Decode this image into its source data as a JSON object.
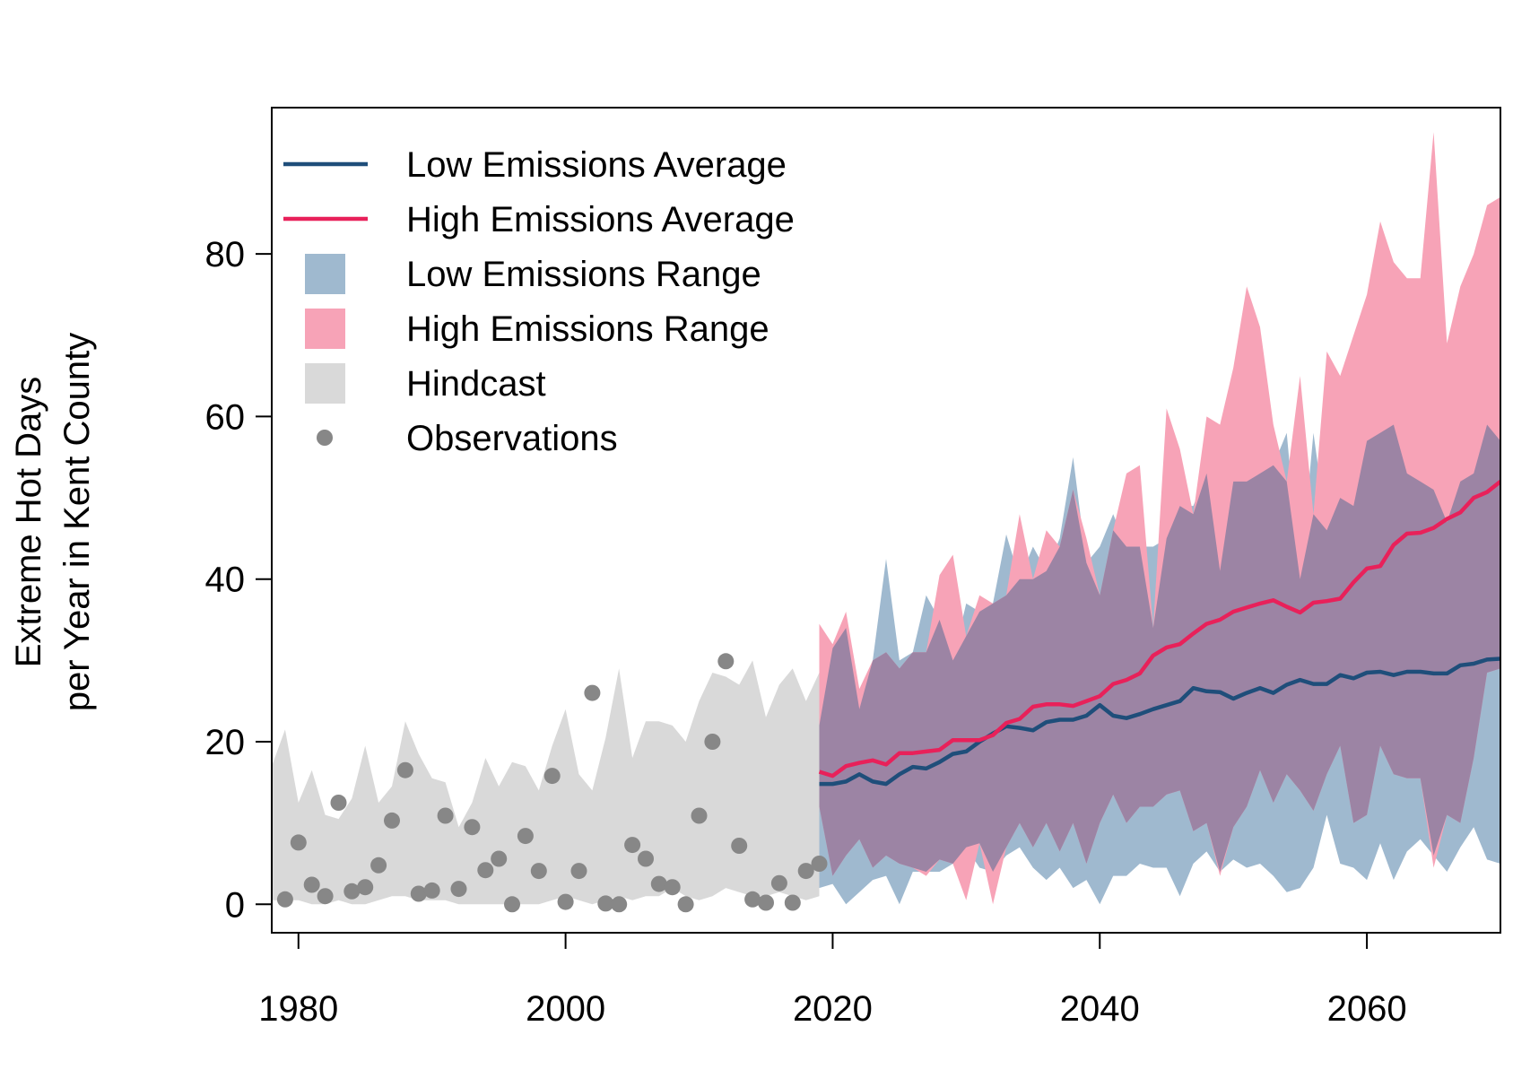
{
  "chart_data": {
    "type": "area",
    "title": "",
    "xlabel": "",
    "ylabel_line1": "Extreme Hot Days",
    "ylabel_line2": "per Year in Kent County",
    "xlim": [
      1978,
      2070
    ],
    "ylim": [
      -3.5,
      98
    ],
    "x_ticks": [
      1980,
      2000,
      2020,
      2040,
      2060
    ],
    "y_ticks": [
      0,
      20,
      40,
      60,
      80
    ],
    "grid": false,
    "legend_placement": "top-left",
    "colors": {
      "low_avg": "#1f4e7a",
      "high_avg": "#e8215a",
      "low_range": "#9fb9cf",
      "high_range": "#f7a3b7",
      "overlap": "#9c84a4",
      "hindcast": "#d9d9d9",
      "observations": "#878787"
    },
    "legend": [
      {
        "label": "Low Emissions Average",
        "kind": "line",
        "color": "#1f4e7a"
      },
      {
        "label": "High Emissions Average",
        "kind": "line",
        "color": "#e8215a"
      },
      {
        "label": "Low Emissions Range",
        "kind": "box",
        "color": "#9fb9cf"
      },
      {
        "label": "High Emissions Range",
        "kind": "box",
        "color": "#f7a3b7"
      },
      {
        "label": "Hindcast",
        "kind": "box",
        "color": "#d9d9d9"
      },
      {
        "label": "Observations",
        "kind": "point",
        "color": "#878787"
      }
    ],
    "series": [
      {
        "name": "Hindcast",
        "x": [
          1978,
          1979,
          1980,
          1981,
          1982,
          1983,
          1984,
          1985,
          1986,
          1987,
          1988,
          1989,
          1990,
          1991,
          1992,
          1993,
          1994,
          1995,
          1996,
          1997,
          1998,
          1999,
          2000,
          2001,
          2002,
          2003,
          2004,
          2005,
          2006,
          2007,
          2008,
          2009,
          2010,
          2011,
          2012,
          2013,
          2014,
          2015,
          2016,
          2017,
          2018,
          2019
        ],
        "upper": [
          17,
          21.5,
          12.5,
          16.5,
          11,
          10.5,
          13,
          19.5,
          12.5,
          14.5,
          22.5,
          18.5,
          15.5,
          15,
          9.5,
          12.5,
          18,
          14.5,
          17.5,
          17,
          14,
          19.5,
          24,
          16,
          14,
          20.5,
          29,
          18,
          22.5,
          22.5,
          22,
          20,
          25,
          28.5,
          28,
          27,
          30,
          23,
          27,
          29,
          25,
          28.5
        ],
        "lower": [
          0.5,
          0.5,
          0.5,
          0,
          0,
          0.5,
          0,
          0,
          0.5,
          1,
          1,
          0.5,
          0.5,
          0.5,
          0,
          0,
          0,
          0,
          0,
          0,
          0,
          0.5,
          1,
          0.5,
          0,
          0.5,
          1,
          0.5,
          1,
          1,
          2,
          1,
          0.5,
          1,
          2,
          1.5,
          1,
          1,
          1.5,
          1,
          0.5,
          1
        ]
      },
      {
        "name": "Low Emissions Range",
        "x": [
          2019,
          2020,
          2021,
          2022,
          2023,
          2024,
          2025,
          2026,
          2027,
          2028,
          2029,
          2030,
          2031,
          2032,
          2033,
          2034,
          2035,
          2036,
          2037,
          2038,
          2039,
          2040,
          2041,
          2042,
          2043,
          2044,
          2045,
          2046,
          2047,
          2048,
          2049,
          2050,
          2051,
          2052,
          2053,
          2054,
          2055,
          2056,
          2057,
          2058,
          2059,
          2060,
          2061,
          2062,
          2063,
          2064,
          2065,
          2066,
          2067,
          2068,
          2069,
          2070
        ],
        "upper": [
          22,
          31.5,
          34,
          24,
          30,
          42.5,
          30,
          31,
          38,
          35,
          30,
          37,
          36,
          37,
          45.5,
          40,
          44,
          41,
          45,
          55,
          42,
          44,
          48,
          44,
          44,
          44,
          45,
          49,
          49,
          53,
          41,
          52,
          52,
          53,
          54,
          58,
          40,
          58,
          46,
          50,
          49,
          57,
          58,
          59,
          53,
          52,
          51,
          47,
          52,
          53,
          59,
          57
        ],
        "lower": [
          2,
          2.5,
          0,
          1.5,
          3,
          3.5,
          0,
          4,
          4,
          4,
          5,
          7,
          4.5,
          4,
          6,
          7,
          4.5,
          3,
          4.5,
          2,
          3,
          0,
          3.5,
          3.5,
          5,
          4.5,
          4.5,
          1,
          5,
          6.5,
          4,
          5.5,
          4.5,
          5,
          3.5,
          1.5,
          2,
          4.5,
          11,
          5,
          4.5,
          3,
          7.5,
          3,
          6.5,
          8,
          6,
          4,
          7,
          9.5,
          5.5,
          5
        ]
      },
      {
        "name": "High Emissions Range",
        "x": [
          2019,
          2020,
          2021,
          2022,
          2023,
          2024,
          2025,
          2026,
          2027,
          2028,
          2029,
          2030,
          2031,
          2032,
          2033,
          2034,
          2035,
          2036,
          2037,
          2038,
          2039,
          2040,
          2041,
          2042,
          2043,
          2044,
          2045,
          2046,
          2047,
          2048,
          2049,
          2050,
          2051,
          2052,
          2053,
          2054,
          2055,
          2056,
          2057,
          2058,
          2059,
          2060,
          2061,
          2062,
          2063,
          2064,
          2065,
          2066,
          2067,
          2068,
          2069,
          2070
        ],
        "upper": [
          34.5,
          32,
          36,
          26.5,
          30,
          31,
          29,
          31,
          31,
          40.5,
          43,
          33,
          38,
          37,
          38,
          48,
          40,
          46,
          44,
          51,
          45,
          38,
          46,
          53,
          54,
          34,
          61,
          56,
          48,
          60,
          59,
          66,
          76,
          71,
          59,
          52,
          65,
          48,
          68,
          65,
          70,
          75,
          84,
          79,
          77,
          77,
          95,
          69,
          76,
          80,
          86,
          87
        ],
        "lower": [
          12,
          3.5,
          6,
          8,
          4.5,
          6,
          5,
          4.5,
          3.5,
          5.5,
          5,
          0.5,
          7.5,
          0,
          7,
          10,
          7,
          10,
          6.5,
          10,
          5,
          10,
          13.5,
          10,
          12,
          12,
          13.5,
          14,
          9,
          10,
          3.5,
          9.5,
          12,
          16.5,
          12.5,
          16,
          14,
          11.5,
          16,
          19.5,
          10,
          11,
          19.5,
          16,
          15.5,
          15.5,
          4.5,
          11,
          10,
          18,
          28.5,
          29
        ]
      },
      {
        "name": "Low Emissions Average",
        "x": [
          2019,
          2020,
          2021,
          2022,
          2023,
          2024,
          2025,
          2026,
          2027,
          2028,
          2029,
          2030,
          2031,
          2032,
          2033,
          2034,
          2035,
          2036,
          2037,
          2038,
          2039,
          2040,
          2041,
          2042,
          2043,
          2044,
          2045,
          2046,
          2047,
          2048,
          2049,
          2050,
          2051,
          2052,
          2053,
          2054,
          2055,
          2056,
          2057,
          2058,
          2059,
          2060,
          2061,
          2062,
          2063,
          2064,
          2065,
          2066,
          2067,
          2068,
          2069,
          2070
        ],
        "values": [
          14.8,
          14.8,
          15.1,
          16,
          15.1,
          14.8,
          16,
          16.9,
          16.7,
          17.5,
          18.5,
          18.8,
          20,
          21,
          21.9,
          21.7,
          21.4,
          22.4,
          22.7,
          22.7,
          23.2,
          24.5,
          23.2,
          22.9,
          23.4,
          24,
          24.5,
          25,
          26.6,
          26.2,
          26.1,
          25.3,
          26,
          26.6,
          26,
          27,
          27.6,
          27.1,
          27.1,
          28.2,
          27.8,
          28.5,
          28.6,
          28.2,
          28.6,
          28.6,
          28.4,
          28.4,
          29.4,
          29.6,
          30.1,
          30.2
        ]
      },
      {
        "name": "High Emissions Average",
        "x": [
          2019,
          2020,
          2021,
          2022,
          2023,
          2024,
          2025,
          2026,
          2027,
          2028,
          2029,
          2030,
          2031,
          2032,
          2033,
          2034,
          2035,
          2036,
          2037,
          2038,
          2039,
          2040,
          2041,
          2042,
          2043,
          2044,
          2045,
          2046,
          2047,
          2048,
          2049,
          2050,
          2051,
          2052,
          2053,
          2054,
          2055,
          2056,
          2057,
          2058,
          2059,
          2060,
          2061,
          2062,
          2063,
          2064,
          2065,
          2066,
          2067,
          2068,
          2069,
          2070
        ],
        "values": [
          16.3,
          15.8,
          17,
          17.4,
          17.7,
          17.2,
          18.6,
          18.6,
          18.8,
          19,
          20.2,
          20.2,
          20.2,
          20.8,
          22.3,
          22.8,
          24.3,
          24.6,
          24.6,
          24.4,
          25,
          25.6,
          27.1,
          27.6,
          28.4,
          30.6,
          31.6,
          32,
          33.3,
          34.5,
          35,
          36,
          36.5,
          37,
          37.4,
          36.6,
          35.9,
          37.1,
          37.3,
          37.6,
          39.6,
          41.3,
          41.6,
          44.2,
          45.6,
          45.7,
          46.3,
          47.4,
          48.2,
          50,
          50.7,
          52
        ]
      },
      {
        "name": "Observations",
        "x": [
          1979,
          1980,
          1981,
          1982,
          1983,
          1984,
          1985,
          1986,
          1987,
          1988,
          1989,
          1990,
          1991,
          1992,
          1993,
          1994,
          1995,
          1996,
          1997,
          1998,
          1999,
          2000,
          2001,
          2002,
          2003,
          2004,
          2005,
          2006,
          2007,
          2008,
          2009,
          2010,
          2011,
          2012,
          2013,
          2014,
          2015,
          2016,
          2017,
          2018,
          2019
        ],
        "values": [
          0.6,
          7.6,
          2.4,
          1,
          12.5,
          1.6,
          2.1,
          4.8,
          10.3,
          16.5,
          1.3,
          1.7,
          10.9,
          1.9,
          9.5,
          4.2,
          5.6,
          0,
          8.4,
          4.1,
          15.8,
          0.3,
          4.1,
          26,
          0.1,
          0,
          7.3,
          5.6,
          2.5,
          2.1,
          0,
          10.9,
          20,
          29.9,
          7.2,
          0.6,
          0.2,
          2.6,
          0.2,
          4.1,
          5
        ]
      }
    ]
  }
}
